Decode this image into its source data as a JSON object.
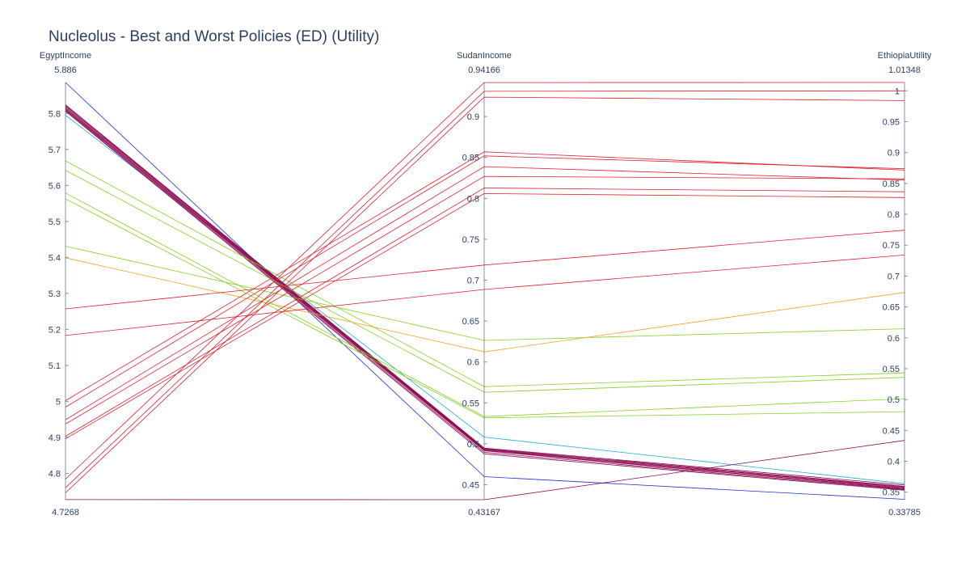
{
  "chart_data": {
    "type": "parallel_coordinates",
    "title": "Nucleolus - Best and Worst Policies (ED) (Utility)",
    "axes": [
      {
        "name": "EgyptIncome",
        "range": [
          4.7268,
          5.886
        ],
        "range_labels": [
          "4.7268",
          "5.886"
        ],
        "ticks": [
          4.8,
          4.9,
          5,
          5.1,
          5.2,
          5.3,
          5.4,
          5.5,
          5.6,
          5.7,
          5.8
        ],
        "tick_labels": [
          "4.8",
          "4.9",
          "5",
          "5.1",
          "5.2",
          "5.3",
          "5.4",
          "5.5",
          "5.6",
          "5.7",
          "5.8"
        ]
      },
      {
        "name": "SudanIncome",
        "range": [
          0.43167,
          0.94166
        ],
        "range_labels": [
          "0.43167",
          "0.94166"
        ],
        "ticks": [
          0.45,
          0.5,
          0.55,
          0.6,
          0.65,
          0.7,
          0.75,
          0.8,
          0.85,
          0.9
        ],
        "tick_labels": [
          "0.45",
          "0.5",
          "0.55",
          "0.6",
          "0.65",
          "0.7",
          "0.75",
          "0.8",
          "0.85",
          "0.9"
        ]
      },
      {
        "name": "EthiopiaUtility",
        "range": [
          0.33785,
          1.01348
        ],
        "range_labels": [
          "0.33785",
          "1.01348"
        ],
        "ticks": [
          0.35,
          0.4,
          0.45,
          0.5,
          0.55,
          0.6,
          0.65,
          0.7,
          0.75,
          0.8,
          0.85,
          0.9,
          0.95,
          1
        ],
        "tick_labels": [
          "0.35",
          "0.4",
          "0.45",
          "0.5",
          "0.55",
          "0.6",
          "0.65",
          "0.7",
          "0.75",
          "0.8",
          "0.85",
          "0.9",
          "0.95",
          "1"
        ]
      }
    ],
    "lines": [
      {
        "values": [
          5.886,
          0.4598,
          0.3385
        ],
        "color": "#1f2fd0"
      },
      {
        "values": [
          5.795,
          0.5082,
          0.3638
        ],
        "color": "#24a8d8"
      },
      {
        "values": [
          5.824,
          0.4948,
          0.3617
        ],
        "color": "#8e0a52"
      },
      {
        "values": [
          5.822,
          0.4941,
          0.3595
        ],
        "color": "#8e0a52"
      },
      {
        "values": [
          5.819,
          0.4934,
          0.3572
        ],
        "color": "#8e0a52"
      },
      {
        "values": [
          5.816,
          0.4928,
          0.3585
        ],
        "color": "#8e0a52"
      },
      {
        "values": [
          5.813,
          0.4921,
          0.3561
        ],
        "color": "#8e0a52"
      },
      {
        "values": [
          5.811,
          0.4915,
          0.3551
        ],
        "color": "#8e0a52"
      },
      {
        "values": [
          5.808,
          0.4896,
          0.354
        ],
        "color": "#8e0a52"
      },
      {
        "values": [
          5.806,
          0.4877,
          0.353
        ],
        "color": "#8e0a52"
      },
      {
        "values": [
          5.668,
          0.5698,
          0.5432
        ],
        "color": "#82d120"
      },
      {
        "values": [
          5.642,
          0.563,
          0.536
        ],
        "color": "#82d120"
      },
      {
        "values": [
          5.579,
          0.5333,
          0.5014
        ],
        "color": "#82d120"
      },
      {
        "values": [
          5.563,
          0.5317,
          0.4805
        ],
        "color": "#82d120"
      },
      {
        "values": [
          5.431,
          0.6264,
          0.6147
        ],
        "color": "#82d120"
      },
      {
        "values": [
          5.399,
          0.6123,
          0.6735
        ],
        "color": "#f0a020"
      },
      {
        "values": [
          5.257,
          0.7185,
          0.7742
        ],
        "color": "#e0202c"
      },
      {
        "values": [
          5.183,
          0.6886,
          0.7341
        ],
        "color": "#e0202c"
      },
      {
        "values": [
          5.002,
          0.8569,
          0.8715
        ],
        "color": "#e0202c"
      },
      {
        "values": [
          4.984,
          0.8519,
          0.8738
        ],
        "color": "#e0202c"
      },
      {
        "values": [
          4.949,
          0.8388,
          0.8555
        ],
        "color": "#e0202c"
      },
      {
        "values": [
          4.937,
          0.8268,
          0.8574
        ],
        "color": "#e0202c"
      },
      {
        "values": [
          4.903,
          0.8127,
          0.8365
        ],
        "color": "#e0202c"
      },
      {
        "values": [
          4.896,
          0.8059,
          0.8272
        ],
        "color": "#e0202c"
      },
      {
        "values": [
          4.784,
          0.9416,
          1.0135
        ],
        "color": "#e0202c"
      },
      {
        "values": [
          4.76,
          0.9309,
          1.0
        ],
        "color": "#e0202c"
      },
      {
        "values": [
          4.746,
          0.9238,
          0.9841
        ],
        "color": "#e0202c"
      },
      {
        "values": [
          4.727,
          0.4317,
          0.4338
        ],
        "color": "#8e0a52"
      }
    ]
  }
}
